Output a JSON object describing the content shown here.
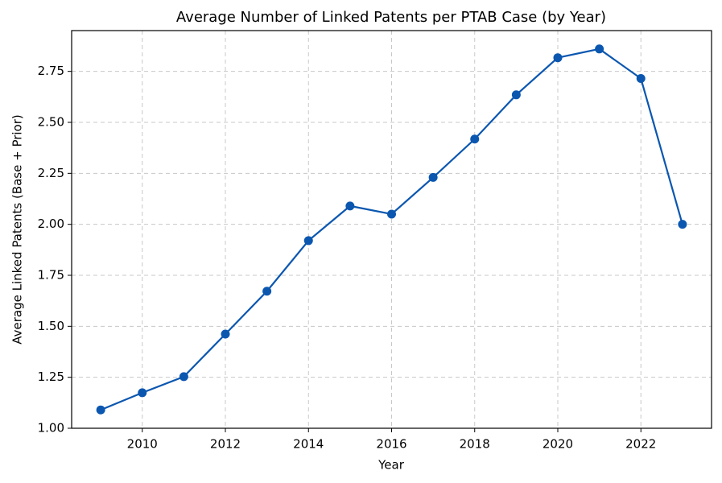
{
  "chart_data": {
    "type": "line",
    "title": "Average Number of Linked Patents per PTAB Case (by Year)",
    "x_label": "Year",
    "y_label": "Average Linked Patents (Base + Prior)",
    "x": [
      2009,
      2010,
      2011,
      2012,
      2013,
      2014,
      2015,
      2016,
      2017,
      2018,
      2019,
      2020,
      2021,
      2022,
      2023
    ],
    "series": [
      {
        "name": "Average Linked Patents",
        "color": "#0b57b0",
        "values": [
          1.09,
          1.174,
          1.253,
          1.462,
          1.672,
          1.92,
          2.09,
          2.05,
          2.23,
          2.418,
          2.635,
          2.817,
          2.86,
          2.715,
          2.0
        ]
      }
    ],
    "xlim": [
      2008.3,
      2023.7
    ],
    "ylim": [
      1.0,
      2.95
    ],
    "xticks": [
      2010,
      2012,
      2014,
      2016,
      2018,
      2020,
      2022
    ],
    "yticks": [
      {
        "value": 1.0,
        "label": "1.00"
      },
      {
        "value": 1.25,
        "label": "1.25"
      },
      {
        "value": 1.5,
        "label": "1.50"
      },
      {
        "value": 1.75,
        "label": "1.75"
      },
      {
        "value": 2.0,
        "label": "2.00"
      },
      {
        "value": 2.25,
        "label": "2.25"
      },
      {
        "value": 2.5,
        "label": "2.50"
      },
      {
        "value": 2.75,
        "label": "2.75"
      }
    ],
    "grid": true
  }
}
